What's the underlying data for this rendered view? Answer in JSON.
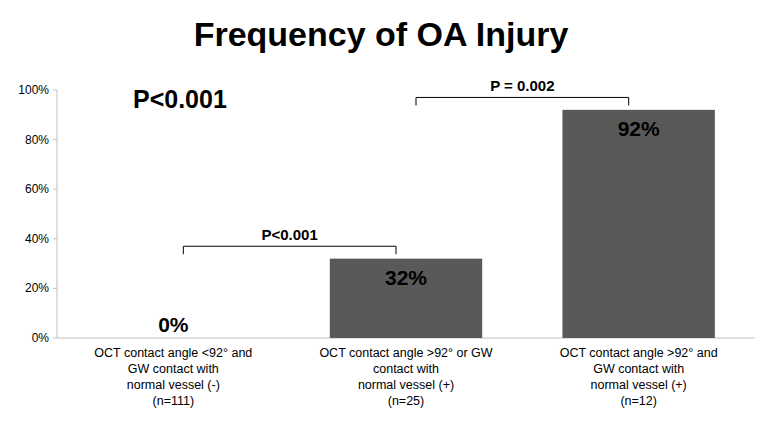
{
  "chart_data": {
    "type": "bar",
    "title": "Frequency of OA Injury",
    "categories": [
      "OCT contact angle <92° and\nGW contact with\nnormal vessel (-)\n(n=111)",
      "OCT contact angle >92° or GW\ncontact with\nnormal vessel (+)\n(n=25)",
      "OCT contact angle >92° and\nGW contact with\nnormal vessel (+)\n(n=12)"
    ],
    "values": [
      0,
      32,
      92
    ],
    "value_labels": [
      "0%",
      "32%",
      "92%"
    ],
    "data_labels": true,
    "color": "#595959",
    "ylim": [
      0,
      100
    ],
    "yticks": [
      {
        "value": 0,
        "label": "0%"
      },
      {
        "value": 20,
        "label": "20%"
      },
      {
        "value": 40,
        "label": "40%"
      },
      {
        "value": 60,
        "label": "60%"
      },
      {
        "value": 80,
        "label": "80%"
      },
      {
        "value": 100,
        "label": "100%"
      }
    ],
    "grid": false,
    "annotations": [
      {
        "text": "P<0.001"
      },
      {
        "text": "P<0.001",
        "from": 0,
        "to": 1,
        "y": 37
      },
      {
        "text": "P = 0.002",
        "from": 1,
        "to": 2,
        "y": 97
      }
    ]
  }
}
